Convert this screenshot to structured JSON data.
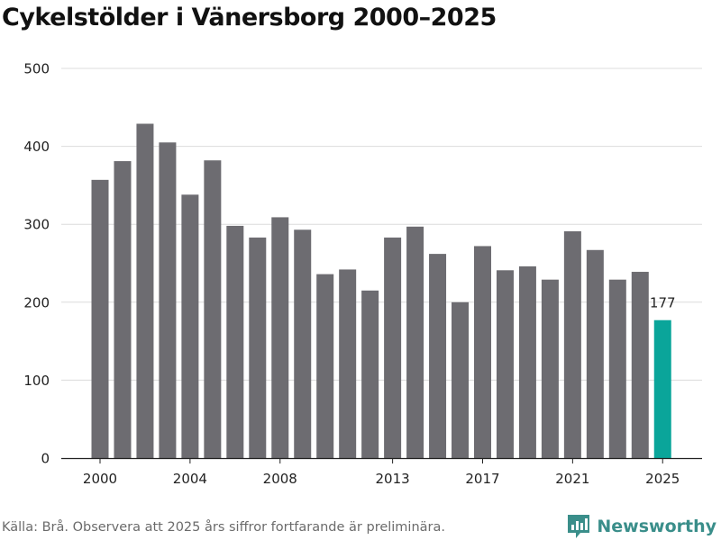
{
  "title": "Cykelstölder i Vänersborg 2000–2025",
  "source_note": "Källa: Brå. Observera att 2025 års siffror fortfarande är preliminära.",
  "brand": {
    "name": "Newsworthy",
    "icon": "newsworthy-logo-icon",
    "color": "#3a8e8a"
  },
  "colors": {
    "bar": "#6d6c71",
    "highlight": "#0aa59a",
    "grid": "#dcdcdc",
    "axis": "#222222"
  },
  "chart_data": {
    "type": "bar",
    "title": "Cykelstölder i Vänersborg 2000–2025",
    "xlabel": "",
    "ylabel": "",
    "ylim": [
      0,
      500
    ],
    "yticks": [
      0,
      100,
      200,
      300,
      400,
      500
    ],
    "x": [
      2000,
      2001,
      2002,
      2003,
      2004,
      2005,
      2006,
      2007,
      2008,
      2009,
      2010,
      2011,
      2012,
      2013,
      2014,
      2015,
      2016,
      2017,
      2018,
      2019,
      2020,
      2021,
      2022,
      2023,
      2024,
      2025
    ],
    "values": [
      357,
      381,
      429,
      405,
      338,
      382,
      298,
      283,
      309,
      293,
      236,
      242,
      215,
      283,
      297,
      262,
      200,
      272,
      241,
      246,
      229,
      291,
      267,
      229,
      239,
      177
    ],
    "xtick_labels": [
      2000,
      2004,
      2008,
      2013,
      2017,
      2021,
      2025
    ],
    "highlight": {
      "x": 2025,
      "label": "177"
    },
    "grid": true,
    "legend": "none"
  }
}
